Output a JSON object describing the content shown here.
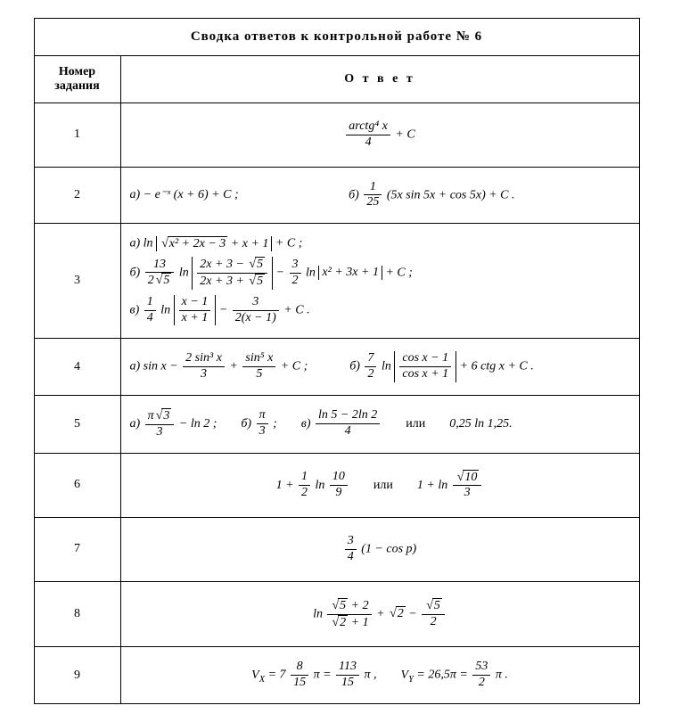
{
  "title": "Сводка ответов к контрольной работе  № 6",
  "headers": {
    "num": "Номер задания",
    "answer": "О т в е т"
  },
  "rows": {
    "n1": "1",
    "n2": "2",
    "n3": "3",
    "n4": "4",
    "n5": "5",
    "n6": "6",
    "n7": "7",
    "n8": "8",
    "n9": "9"
  },
  "labels": {
    "a": "а)",
    "b": "б)",
    "v": "в)",
    "or": "или",
    "C": "C",
    "plusC": " + C",
    "semi": " ;",
    "dot": " ."
  },
  "math": {
    "r1_num": "arctg⁴ x",
    "r1_den": "4",
    "r2a": "− e⁻ˣ (x + 6) + C ;",
    "r2b_frac_n": "1",
    "r2b_frac_d": "25",
    "r2b_rest": " (5x sin 5x + cos 5x) + C .",
    "r3a_pre": "ln ",
    "r3a_sqrt": "x² + 2x − 3",
    "r3a_post": " + x + 1",
    "r3b_c1n": "13",
    "r3b_c1d_pre": "2",
    "r3b_c1d_sqrt": "5",
    "r3b_ln1n_pre": "2x + 3 − ",
    "r3b_ln1n_sqrt": "5",
    "r3b_ln1d_pre": "2x + 3 + ",
    "r3b_ln1d_sqrt": "5",
    "r3b_c2n": "3",
    "r3b_c2d": "2",
    "r3b_abs2": "x² + 3x + 1",
    "r3v_c1n": "1",
    "r3v_c1d": "4",
    "r3v_abs_n": "x − 1",
    "r3v_abs_d": "x + 1",
    "r3v_c2n": "3",
    "r3v_c2d": "2(x − 1)",
    "r4a_pre": "sin x − ",
    "r4a_f1n": "2 sin³ x",
    "r4a_f1d": "3",
    "r4a_f2n": "sin⁵ x",
    "r4a_f2d": "5",
    "r4b_c1n": "7",
    "r4b_c1d": "2",
    "r4b_abs_n": "cos x − 1",
    "r4b_abs_d": "cos x + 1",
    "r4b_post": " + 6 ctg x + C .",
    "r5a_n_pre": "π",
    "r5a_n_sqrt": "3",
    "r5a_d": "3",
    "r5a_post": " − ln 2 ;",
    "r5b_n": "π",
    "r5b_d": "3",
    "r5v_n": "ln 5 − 2ln 2",
    "r5v_d": "4",
    "r5_or2": "0,25 ln 1,25.",
    "r6_pre": "1 + ",
    "r6_f1n": "1",
    "r6_f1d": "2",
    "r6_mid": " ln ",
    "r6_f2n": "10",
    "r6_f2d": "9",
    "r6_alt_pre": "1 + ln ",
    "r6_alt_sqrt": "10",
    "r6_alt_d": "3",
    "r7_n": "3",
    "r7_d": "4",
    "r7_post": " (1 − cos p)",
    "r8_f1n_sqrt": "5",
    "r8_f1n_post": " + 2",
    "r8_f1d_sqrt": "2",
    "r8_f1d_post": " + 1",
    "r8_mid": " + ",
    "r8_sqrt2": "2",
    "r8_minus": " − ",
    "r8_f2n_sqrt": "5",
    "r8_f2d": "2",
    "r9_vx": "Vₓ = 7",
    "r9_f1n": "8",
    "r9_f1d": "15",
    "r9_pi": " π = ",
    "r9_f2n": "113",
    "r9_f2d": "15",
    "r9_pi2": " π ,",
    "r9_vy": "V_Y = 26,5π = ",
    "r9_f3n": "53",
    "r9_f3d": "2",
    "r9_pi3": " π ."
  }
}
